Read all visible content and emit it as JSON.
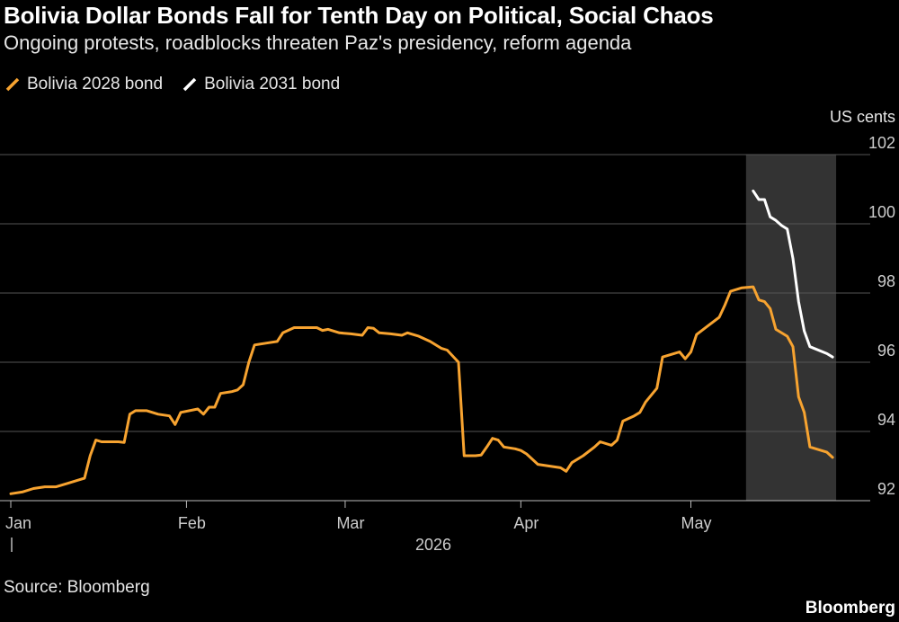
{
  "header": {
    "title": "Bolivia Dollar Bonds Fall for Tenth Day on Political, Social Chaos",
    "subtitle": "Ongoing protests, roadblocks threaten Paz's presidency, reform agenda"
  },
  "footer": {
    "source": "Source: Bloomberg",
    "brand": "Bloomberg"
  },
  "colors": {
    "background": "#000000",
    "series_2028": "#f7a330",
    "series_2031": "#ffffff",
    "gridline": "#555555",
    "shade": "#333333"
  },
  "chart_data": {
    "type": "line",
    "title": "Bolivia Dollar Bonds Fall for Tenth Day on Political, Social Chaos",
    "subtitle": "Ongoing protests, roadblocks threaten Paz's presidency, reform agenda",
    "ylabel": "US cents",
    "y_axis_position": "right",
    "ylim": [
      92,
      102
    ],
    "yticks": [
      92,
      94,
      96,
      98,
      100,
      102
    ],
    "xlim": [
      "2026-01-01",
      "2026-05-29"
    ],
    "x_ticks": [
      {
        "label": "Jan",
        "date": "2026-01-01"
      },
      {
        "label": "Feb",
        "date": "2026-02-01"
      },
      {
        "label": "Mar",
        "date": "2026-03-01"
      },
      {
        "label": "Apr",
        "date": "2026-04-01"
      },
      {
        "label": "May",
        "date": "2026-05-01"
      }
    ],
    "year_label": "2026",
    "grid": "horizontal",
    "legend_placement": "top-left",
    "shaded_region": {
      "start": "2026-05-12",
      "end": "2026-05-26"
    },
    "series": [
      {
        "name": "Bolivia 2028 bond",
        "color": "#f7a330",
        "points": [
          [
            "2026-01-01",
            92.2
          ],
          [
            "2026-01-03",
            92.25
          ],
          [
            "2026-01-05",
            92.35
          ],
          [
            "2026-01-07",
            92.4
          ],
          [
            "2026-01-09",
            92.4
          ],
          [
            "2026-01-11",
            92.5
          ],
          [
            "2026-01-13",
            92.6
          ],
          [
            "2026-01-14",
            92.65
          ],
          [
            "2026-01-15",
            93.3
          ],
          [
            "2026-01-16",
            93.75
          ],
          [
            "2026-01-17",
            93.7
          ],
          [
            "2026-01-20",
            93.7
          ],
          [
            "2026-01-21",
            93.68
          ],
          [
            "2026-01-22",
            94.5
          ],
          [
            "2026-01-23",
            94.6
          ],
          [
            "2026-01-25",
            94.6
          ],
          [
            "2026-01-27",
            94.5
          ],
          [
            "2026-01-29",
            94.45
          ],
          [
            "2026-01-30",
            94.2
          ],
          [
            "2026-01-31",
            94.55
          ],
          [
            "2026-02-03",
            94.65
          ],
          [
            "2026-02-04",
            94.5
          ],
          [
            "2026-02-05",
            94.7
          ],
          [
            "2026-02-06",
            94.7
          ],
          [
            "2026-02-07",
            95.1
          ],
          [
            "2026-02-09",
            95.15
          ],
          [
            "2026-02-10",
            95.2
          ],
          [
            "2026-02-11",
            95.35
          ],
          [
            "2026-02-12",
            96.0
          ],
          [
            "2026-02-13",
            96.5
          ],
          [
            "2026-02-15",
            96.55
          ],
          [
            "2026-02-17",
            96.6
          ],
          [
            "2026-02-18",
            96.85
          ],
          [
            "2026-02-20",
            97.0
          ],
          [
            "2026-02-22",
            97.0
          ],
          [
            "2026-02-24",
            97.0
          ],
          [
            "2026-02-25",
            96.92
          ],
          [
            "2026-02-26",
            96.95
          ],
          [
            "2026-02-28",
            96.85
          ],
          [
            "2026-03-02",
            96.82
          ],
          [
            "2026-03-04",
            96.78
          ],
          [
            "2026-03-05",
            97.0
          ],
          [
            "2026-03-06",
            96.98
          ],
          [
            "2026-03-07",
            96.85
          ],
          [
            "2026-03-09",
            96.82
          ],
          [
            "2026-03-11",
            96.78
          ],
          [
            "2026-03-12",
            96.85
          ],
          [
            "2026-03-14",
            96.75
          ],
          [
            "2026-03-16",
            96.6
          ],
          [
            "2026-03-18",
            96.4
          ],
          [
            "2026-03-19",
            96.35
          ],
          [
            "2026-03-21",
            96.0
          ],
          [
            "2026-03-22",
            93.3
          ],
          [
            "2026-03-24",
            93.3
          ],
          [
            "2026-03-25",
            93.32
          ],
          [
            "2026-03-26",
            93.55
          ],
          [
            "2026-03-27",
            93.8
          ],
          [
            "2026-03-28",
            93.75
          ],
          [
            "2026-03-29",
            93.55
          ],
          [
            "2026-03-31",
            93.5
          ],
          [
            "2026-04-01",
            93.45
          ],
          [
            "2026-04-02",
            93.35
          ],
          [
            "2026-04-04",
            93.05
          ],
          [
            "2026-04-06",
            93.0
          ],
          [
            "2026-04-08",
            92.95
          ],
          [
            "2026-04-09",
            92.85
          ],
          [
            "2026-04-10",
            93.1
          ],
          [
            "2026-04-12",
            93.3
          ],
          [
            "2026-04-14",
            93.55
          ],
          [
            "2026-04-15",
            93.7
          ],
          [
            "2026-04-17",
            93.6
          ],
          [
            "2026-04-18",
            93.75
          ],
          [
            "2026-04-19",
            94.3
          ],
          [
            "2026-04-21",
            94.45
          ],
          [
            "2026-04-22",
            94.55
          ],
          [
            "2026-04-23",
            94.85
          ],
          [
            "2026-04-25",
            95.25
          ],
          [
            "2026-04-26",
            96.15
          ],
          [
            "2026-04-28",
            96.25
          ],
          [
            "2026-04-29",
            96.3
          ],
          [
            "2026-04-30",
            96.1
          ],
          [
            "2026-05-01",
            96.3
          ],
          [
            "2026-05-02",
            96.8
          ],
          [
            "2026-05-04",
            97.05
          ],
          [
            "2026-05-06",
            97.3
          ],
          [
            "2026-05-07",
            97.65
          ],
          [
            "2026-05-08",
            98.05
          ],
          [
            "2026-05-10",
            98.15
          ],
          [
            "2026-05-12",
            98.18
          ],
          [
            "2026-05-13",
            97.8
          ],
          [
            "2026-05-14",
            97.75
          ],
          [
            "2026-05-15",
            97.55
          ],
          [
            "2026-05-16",
            96.95
          ],
          [
            "2026-05-18",
            96.75
          ],
          [
            "2026-05-19",
            96.45
          ],
          [
            "2026-05-20",
            95.0
          ],
          [
            "2026-05-21",
            94.55
          ],
          [
            "2026-05-22",
            93.55
          ],
          [
            "2026-05-25",
            93.4
          ],
          [
            "2026-05-26",
            93.25
          ]
        ]
      },
      {
        "name": "Bolivia 2031 bond",
        "color": "#ffffff",
        "points": [
          [
            "2026-05-12",
            100.95
          ],
          [
            "2026-05-13",
            100.7
          ],
          [
            "2026-05-14",
            100.7
          ],
          [
            "2026-05-15",
            100.2
          ],
          [
            "2026-05-16",
            100.1
          ],
          [
            "2026-05-17",
            99.95
          ],
          [
            "2026-05-18",
            99.85
          ],
          [
            "2026-05-19",
            99.0
          ],
          [
            "2026-05-20",
            97.75
          ],
          [
            "2026-05-21",
            96.9
          ],
          [
            "2026-05-22",
            96.45
          ],
          [
            "2026-05-25",
            96.25
          ],
          [
            "2026-05-26",
            96.15
          ]
        ]
      }
    ]
  }
}
